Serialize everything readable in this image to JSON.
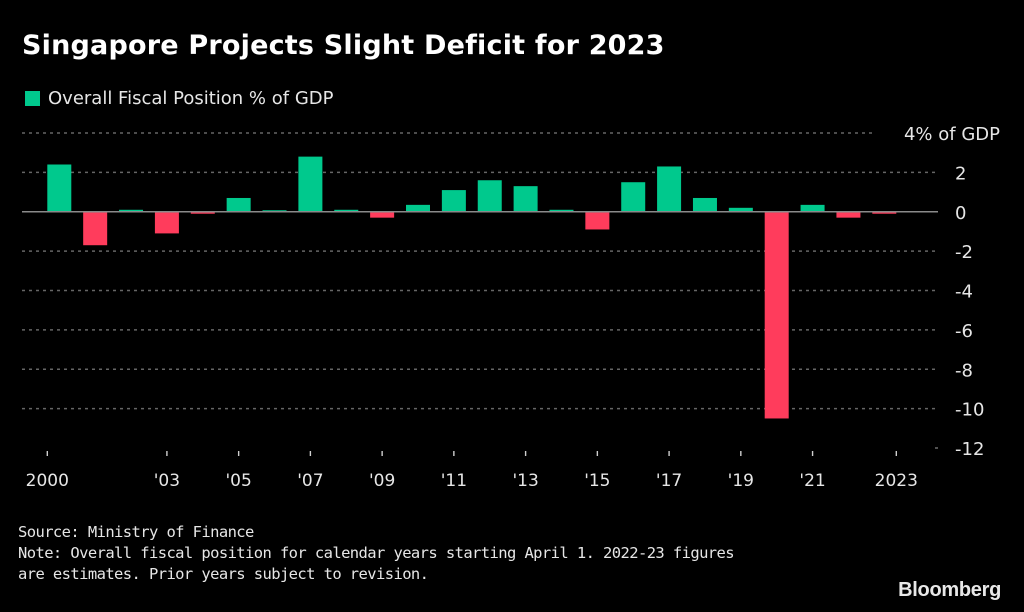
{
  "title": "Singapore Projects Slight Deficit for 2023",
  "legend": {
    "label": "Overall Fiscal Position % of GDP",
    "color": "#00c98d"
  },
  "colors": {
    "positive": "#00c98d",
    "negative": "#ff3c5c",
    "grid": "#666666",
    "zero": "#8a8a8a",
    "text": "#e6e6e6"
  },
  "chart_data": {
    "type": "bar",
    "title": "Singapore Projects Slight Deficit for 2023",
    "xlabel": "",
    "ylabel": "% of GDP",
    "ylim": [
      -12,
      4
    ],
    "yticks": [
      4,
      2,
      0,
      -2,
      -4,
      -6,
      -8,
      -10,
      -12
    ],
    "ytick_labels": [
      "4% of GDP",
      "2",
      "0",
      "-2",
      "-4",
      "-6",
      "-8",
      "-10",
      "-12"
    ],
    "grid": true,
    "legend_position": "top-left",
    "categories": [
      "2000",
      "2001",
      "2002",
      "2003",
      "2004",
      "2005",
      "2006",
      "2007",
      "2008",
      "2009",
      "2010",
      "2011",
      "2012",
      "2013",
      "2014",
      "2015",
      "2016",
      "2017",
      "2018",
      "2019",
      "2020",
      "2021",
      "2022",
      "2023"
    ],
    "xtick_labels": [
      {
        "year": "2000",
        "label": "2000",
        "edge": "start"
      },
      {
        "year": "2003",
        "label": "'03"
      },
      {
        "year": "2005",
        "label": "'05"
      },
      {
        "year": "2007",
        "label": "'07"
      },
      {
        "year": "2009",
        "label": "'09"
      },
      {
        "year": "2011",
        "label": "'11"
      },
      {
        "year": "2013",
        "label": "'13"
      },
      {
        "year": "2015",
        "label": "'15"
      },
      {
        "year": "2017",
        "label": "'17"
      },
      {
        "year": "2019",
        "label": "'19"
      },
      {
        "year": "2021",
        "label": "'21"
      },
      {
        "year": "2023",
        "label": "2023",
        "edge": "end"
      }
    ],
    "series": [
      {
        "name": "Overall Fiscal Position % of GDP",
        "values": [
          2.4,
          -1.7,
          0.1,
          -1.1,
          -0.1,
          0.7,
          0.05,
          2.8,
          0.1,
          -0.3,
          0.35,
          1.1,
          1.6,
          1.3,
          0.1,
          -0.9,
          1.5,
          2.3,
          0.7,
          0.2,
          -10.5,
          0.35,
          -0.3,
          -0.1
        ]
      }
    ]
  },
  "footer": {
    "source": "Source: Ministry of Finance",
    "note_line1": "Note: Overall fiscal position for calendar years starting April 1. 2022-23 figures",
    "note_line2": "are estimates. Prior years subject to revision."
  },
  "brand": "Bloomberg"
}
